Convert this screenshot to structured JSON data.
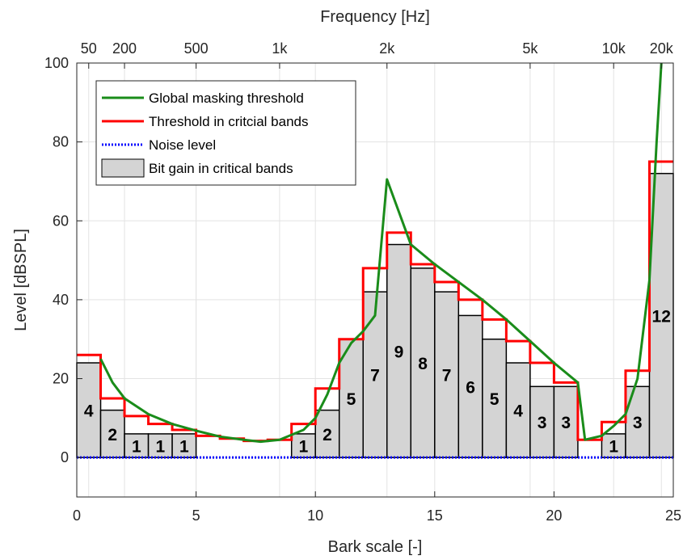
{
  "chart_data": {
    "type": "bar",
    "xlabel": "Bark scale [-]",
    "ylabel": "Level [dBSPL]",
    "x2label": "Frequency [Hz]",
    "xlim": [
      0,
      25
    ],
    "ylim": [
      -10,
      100
    ],
    "grid": true,
    "legend_position": "top-left",
    "x_ticks": [
      0,
      5,
      10,
      15,
      20,
      25
    ],
    "y_ticks": [
      0,
      20,
      40,
      60,
      80,
      100
    ],
    "top_ticks": [
      {
        "bark": 0.5,
        "label": "50"
      },
      {
        "bark": 2,
        "label": "200"
      },
      {
        "bark": 5,
        "label": "500"
      },
      {
        "bark": 8.5,
        "label": "1k"
      },
      {
        "bark": 13,
        "label": "2k"
      },
      {
        "bark": 19,
        "label": "5k"
      },
      {
        "bark": 22.5,
        "label": "10k"
      },
      {
        "bark": 24.5,
        "label": "20k"
      }
    ],
    "legend": {
      "global": "Global masking threshold",
      "bands": "Threshold in critcial bands",
      "noise": "Noise level",
      "bits": "Bit gain in critical bands"
    },
    "bars": [
      {
        "x0": 0,
        "x1": 1,
        "value": 24,
        "label": "4"
      },
      {
        "x0": 1,
        "x1": 2,
        "value": 12,
        "label": "2"
      },
      {
        "x0": 2,
        "x1": 3,
        "value": 6,
        "label": "1"
      },
      {
        "x0": 3,
        "x1": 4,
        "value": 6,
        "label": "1"
      },
      {
        "x0": 4,
        "x1": 5,
        "value": 6,
        "label": "1"
      },
      {
        "x0": 9,
        "x1": 10,
        "value": 6,
        "label": "1"
      },
      {
        "x0": 10,
        "x1": 11,
        "value": 12,
        "label": "2"
      },
      {
        "x0": 11,
        "x1": 12,
        "value": 30,
        "label": "5"
      },
      {
        "x0": 12,
        "x1": 13,
        "value": 42,
        "label": "7"
      },
      {
        "x0": 13,
        "x1": 14,
        "value": 54,
        "label": "9"
      },
      {
        "x0": 14,
        "x1": 15,
        "value": 48,
        "label": "8"
      },
      {
        "x0": 15,
        "x1": 16,
        "value": 42,
        "label": "7"
      },
      {
        "x0": 16,
        "x1": 17,
        "value": 36,
        "label": "6"
      },
      {
        "x0": 17,
        "x1": 18,
        "value": 30,
        "label": "5"
      },
      {
        "x0": 18,
        "x1": 19,
        "value": 24,
        "label": "4"
      },
      {
        "x0": 19,
        "x1": 20,
        "value": 18,
        "label": "3"
      },
      {
        "x0": 20,
        "x1": 21,
        "value": 18,
        "label": "3"
      },
      {
        "x0": 22,
        "x1": 23,
        "value": 6,
        "label": "1"
      },
      {
        "x0": 23,
        "x1": 24,
        "value": 18,
        "label": "3"
      },
      {
        "x0": 24,
        "x1": 25,
        "value": 72,
        "label": "12"
      }
    ],
    "band_threshold_steps": [
      {
        "x0": 0,
        "x1": 1,
        "value": 26
      },
      {
        "x0": 1,
        "x1": 2,
        "value": 15
      },
      {
        "x0": 2,
        "x1": 3,
        "value": 10.5
      },
      {
        "x0": 3,
        "x1": 4,
        "value": 8.5
      },
      {
        "x0": 4,
        "x1": 5,
        "value": 7
      },
      {
        "x0": 5,
        "x1": 6,
        "value": 5.5
      },
      {
        "x0": 6,
        "x1": 7,
        "value": 4.8
      },
      {
        "x0": 7,
        "x1": 8,
        "value": 4.2
      },
      {
        "x0": 8,
        "x1": 9,
        "value": 4.5
      },
      {
        "x0": 9,
        "x1": 10,
        "value": 8.5
      },
      {
        "x0": 10,
        "x1": 11,
        "value": 17.5
      },
      {
        "x0": 11,
        "x1": 12,
        "value": 30
      },
      {
        "x0": 12,
        "x1": 13,
        "value": 48
      },
      {
        "x0": 13,
        "x1": 14,
        "value": 57
      },
      {
        "x0": 14,
        "x1": 15,
        "value": 49
      },
      {
        "x0": 15,
        "x1": 16,
        "value": 44.5
      },
      {
        "x0": 16,
        "x1": 17,
        "value": 40
      },
      {
        "x0": 17,
        "x1": 18,
        "value": 35
      },
      {
        "x0": 18,
        "x1": 19,
        "value": 29.5
      },
      {
        "x0": 19,
        "x1": 20,
        "value": 24
      },
      {
        "x0": 20,
        "x1": 21,
        "value": 19
      },
      {
        "x0": 21,
        "x1": 22,
        "value": 4.5
      },
      {
        "x0": 22,
        "x1": 23,
        "value": 9
      },
      {
        "x0": 23,
        "x1": 24,
        "value": 22
      },
      {
        "x0": 24,
        "x1": 25,
        "value": 75
      }
    ],
    "global_masking_threshold": [
      [
        1,
        25
      ],
      [
        1.5,
        19
      ],
      [
        2,
        15
      ],
      [
        3,
        11
      ],
      [
        4,
        8.5
      ],
      [
        5,
        6.8
      ],
      [
        6,
        5.3
      ],
      [
        7,
        4.5
      ],
      [
        7.7,
        4
      ],
      [
        8.5,
        4.5
      ],
      [
        9.5,
        7
      ],
      [
        10,
        10
      ],
      [
        10.5,
        16
      ],
      [
        11,
        24
      ],
      [
        11.5,
        29
      ],
      [
        12,
        32
      ],
      [
        12.5,
        36
      ],
      [
        13,
        70.5
      ],
      [
        14,
        54
      ],
      [
        15,
        49
      ],
      [
        16,
        44.5
      ],
      [
        17,
        40
      ],
      [
        18,
        35
      ],
      [
        19,
        29.5
      ],
      [
        20,
        24
      ],
      [
        21,
        19
      ],
      [
        21.3,
        4.5
      ],
      [
        22,
        5.5
      ],
      [
        22.5,
        8
      ],
      [
        23,
        11
      ],
      [
        23.5,
        20
      ],
      [
        24,
        45
      ],
      [
        24.3,
        80
      ],
      [
        24.5,
        100
      ]
    ],
    "noise_level": 0,
    "colors": {
      "global": "#1a8c1a",
      "bands": "#ff0000",
      "noise": "#0000ff",
      "bar_fill": "#d4d4d4",
      "bar_edge": "#000000"
    }
  }
}
